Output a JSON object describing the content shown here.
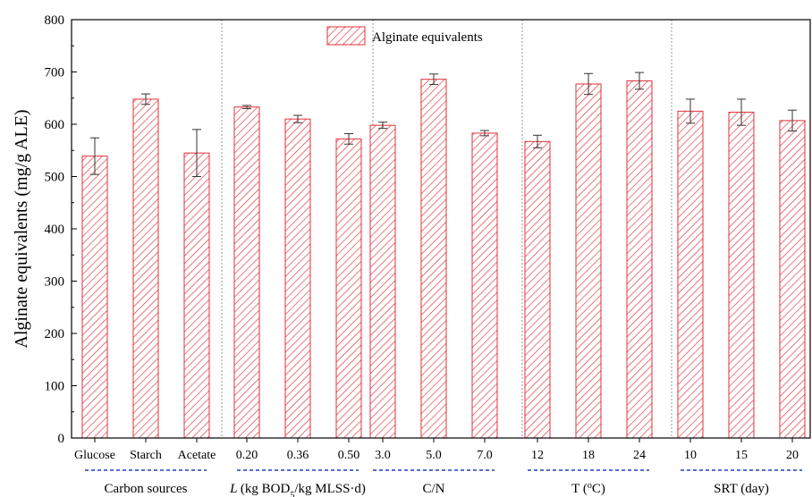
{
  "chart_data": {
    "type": "bar",
    "ylabel": "Alginate equivalents (mg/g ALE)",
    "ylim": [
      0,
      800
    ],
    "yticks": [
      0,
      100,
      200,
      300,
      400,
      500,
      600,
      700,
      800
    ],
    "legend": {
      "label": "Alginate equivalents",
      "position": "top-center"
    },
    "colors": {
      "bar_stroke": "#e0303a",
      "hatch": "#e0303a",
      "group_underline": "#1f3fbf",
      "separator": "#999999",
      "axis": "#000000"
    },
    "groups": [
      {
        "label": "Carbon sources",
        "categories": [
          "Glucose",
          "Starch",
          "Acetate"
        ],
        "values": [
          539,
          648,
          545
        ],
        "errors": [
          35,
          10,
          45
        ]
      },
      {
        "label": "(kg BOD5/kg MLSS·d)",
        "label_parts": {
          "italic": "L",
          "pre": "(kg BOD",
          "sub": "5",
          "post": "/kg MLSS·d)"
        },
        "categories": [
          "0.20",
          "0.36",
          "0.50"
        ],
        "values": [
          633,
          610,
          572
        ],
        "errors": [
          3,
          7,
          10
        ]
      },
      {
        "label": "C/N",
        "categories": [
          "3.0",
          "5.0",
          "7.0"
        ],
        "values": [
          598,
          686,
          583
        ],
        "errors": [
          6,
          10,
          5
        ]
      },
      {
        "label": "T (ºC)",
        "label_parts": {
          "pre": "T (",
          "sup": "o",
          "post": "C)"
        },
        "categories": [
          "12",
          "18",
          "24"
        ],
        "values": [
          567,
          677,
          683
        ],
        "errors": [
          12,
          20,
          16
        ]
      },
      {
        "label": "SRT (day)",
        "categories": [
          "10",
          "15",
          "20"
        ],
        "values": [
          625,
          623,
          607
        ],
        "errors": [
          23,
          25,
          20
        ]
      }
    ]
  }
}
